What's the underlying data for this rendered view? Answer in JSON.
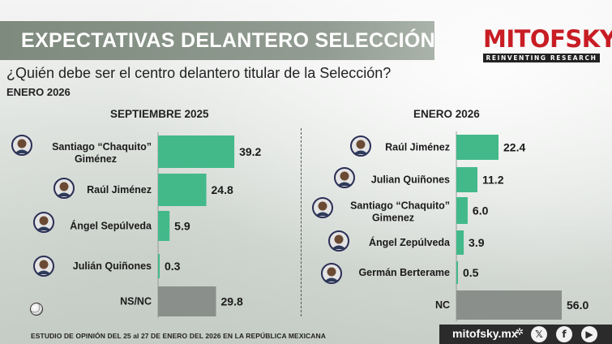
{
  "header": {
    "title": "EXPECTATIVAS DELANTERO SELECCIÓN",
    "question": "¿Quién debe ser el centro delantero titular de la Selección?",
    "date_label": "ENERO 2026"
  },
  "logo": {
    "name": "MITOFSKY",
    "tagline": "REINVENTING RESEARCH",
    "color": "#c81d25"
  },
  "colors": {
    "candidate_bar": "#43b98a",
    "other_bar": "#8b8f8b",
    "axis": "#9a9a9a"
  },
  "chart_data": [
    {
      "type": "bar",
      "orientation": "horizontal",
      "title": "SEPTIEMBRE 2025",
      "categories": [
        "Santiago “Chaquito” Giménez",
        "Raúl Jiménez",
        "Ángel Sepúlveda",
        "Julián Quiñones",
        "NS/NC"
      ],
      "values": [
        39.2,
        24.8,
        5.9,
        0.3,
        29.8
      ],
      "value_labels": [
        "39.2",
        "24.8",
        "5.9",
        "0.3",
        "29.8"
      ],
      "photos": [
        true,
        true,
        true,
        true,
        false
      ],
      "bar_kind": [
        "candidate",
        "candidate",
        "candidate",
        "candidate",
        "other"
      ],
      "xlim": [
        0,
        40
      ]
    },
    {
      "type": "bar",
      "orientation": "horizontal",
      "title": "ENERO 2026",
      "categories": [
        "Raúl Jiménez",
        "Julian Quiñones",
        "Santiago “Chaquito” Gimenez",
        "Ángel Zepúlveda",
        "Germán Berterame",
        "NC"
      ],
      "values": [
        22.4,
        11.2,
        6.0,
        3.9,
        0.5,
        56.0
      ],
      "value_labels": [
        "22.4",
        "11.2",
        "6.0",
        "3.9",
        "0.5",
        "56.0"
      ],
      "photos": [
        true,
        true,
        true,
        true,
        true,
        false
      ],
      "bar_kind": [
        "candidate",
        "candidate",
        "candidate",
        "candidate",
        "candidate",
        "other"
      ],
      "xlim": [
        0,
        56
      ]
    }
  ],
  "footer": {
    "note": "ESTUDIO DE OPINIÓN DEL 25 al 27 DE ENERO DEL 2026 EN LA REPÚBLICA MEXICANA",
    "site": "mitofsky.mx",
    "social": [
      "x-icon",
      "facebook-icon",
      "youtube-icon"
    ],
    "x_glyph": "𝕏",
    "fb_glyph": "f",
    "yt_glyph": "▶"
  }
}
